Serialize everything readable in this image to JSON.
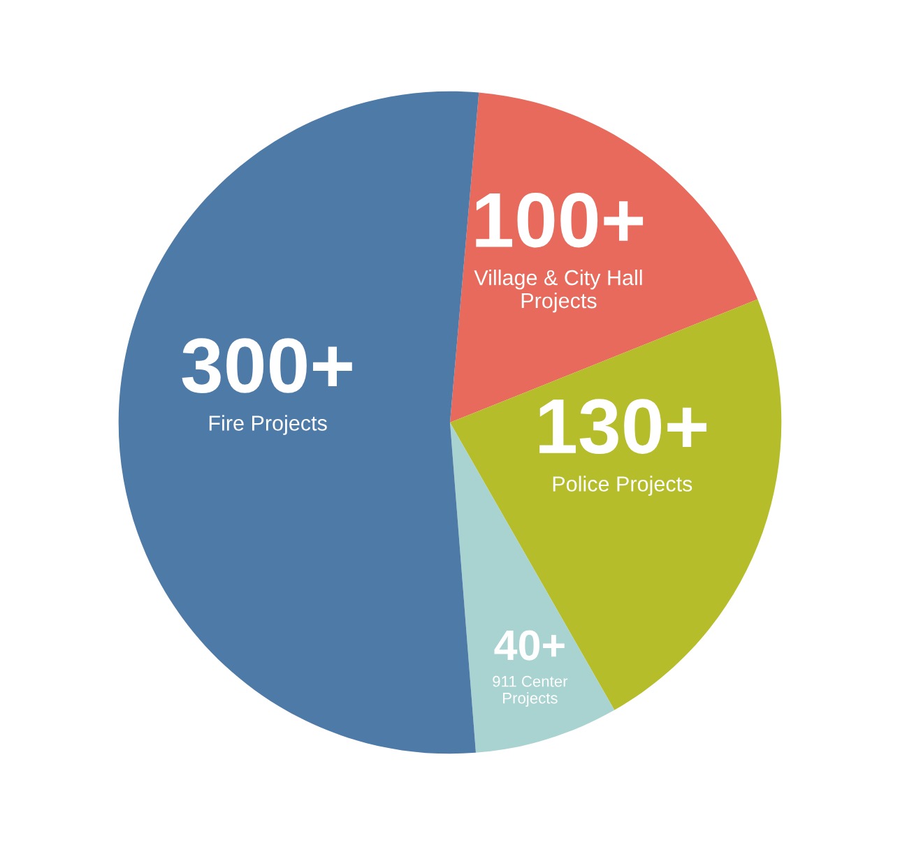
{
  "chart_data": {
    "type": "pie",
    "categories": [
      "Village & City Hall\nProjects",
      "Police Projects",
      "911 Center\nProjects",
      "Fire Projects"
    ],
    "values": [
      100,
      130,
      40,
      300
    ],
    "value_labels": [
      "100+",
      "130+",
      "40+",
      "300+"
    ],
    "colors": [
      "#e86a5c",
      "#b5bd2a",
      "#a9d3d0",
      "#4e7aa8"
    ]
  }
}
